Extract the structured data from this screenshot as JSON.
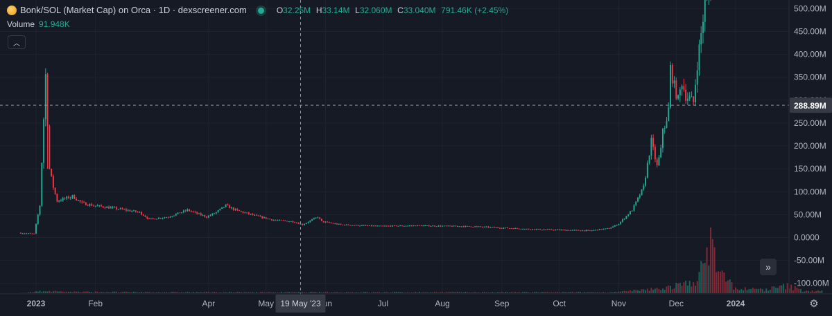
{
  "legend": {
    "title": "Bonk/SOL (Market Cap) on Orca · 1D · dexscreener.com",
    "ohlc": [
      {
        "k": "O",
        "v": "32.25M"
      },
      {
        "k": "H",
        "v": "33.14M"
      },
      {
        "k": "L",
        "v": "32.060M"
      },
      {
        "k": "C",
        "v": "33.040M"
      },
      {
        "k": "",
        "v": "791.46K (+2.45%)"
      }
    ],
    "volume_label": "Volume",
    "volume_value": "91.948K"
  },
  "icons": {
    "collapse": "chevron-up-icon",
    "scroll": "double-chevron-right-icon",
    "settings": "gear-icon"
  },
  "colors": {
    "background": "#161a25",
    "up": "#22ab94",
    "down": "#f23645",
    "grid": "#1f2330",
    "crosshair": "#9598a1"
  },
  "chart_data": {
    "type": "candlestick",
    "x_unit": "day",
    "y_unit": "market cap (USD)",
    "ylim": [
      -110,
      525
    ],
    "y_ticks": [
      "500.00M",
      "450.00M",
      "400.00M",
      "350.00M",
      "300.00M",
      "250.00M",
      "200.00M",
      "150.00M",
      "100.00M",
      "50.00M",
      "0.0000",
      "-50.00M",
      "-100.00M"
    ],
    "y_tick_values": [
      500,
      450,
      400,
      350,
      300,
      250,
      200,
      150,
      100,
      50,
      0,
      -50,
      -100
    ],
    "x_labels": [
      "2023",
      "Feb",
      "Apr",
      "May",
      "Jun",
      "Jul",
      "Aug",
      "Sep",
      "Oct",
      "Nov",
      "Dec",
      "2024"
    ],
    "x_label_days": [
      0,
      31,
      90,
      120,
      151,
      181,
      212,
      243,
      273,
      304,
      334,
      365
    ],
    "x_range_days": [
      -8,
      412
    ],
    "crosshair": {
      "x_label": "19 May '23",
      "x_day": 138,
      "y_label": "288.89M",
      "y_value": 288.89
    },
    "price_anchors": [
      [
        -8,
        10
      ],
      [
        0,
        8
      ],
      [
        3,
        70
      ],
      [
        5,
        260
      ],
      [
        6,
        355
      ],
      [
        8,
        150
      ],
      [
        10,
        110
      ],
      [
        12,
        80
      ],
      [
        20,
        90
      ],
      [
        25,
        75
      ],
      [
        31,
        70
      ],
      [
        45,
        62
      ],
      [
        55,
        55
      ],
      [
        60,
        40
      ],
      [
        70,
        45
      ],
      [
        80,
        60
      ],
      [
        90,
        45
      ],
      [
        95,
        55
      ],
      [
        100,
        70
      ],
      [
        105,
        60
      ],
      [
        115,
        48
      ],
      [
        125,
        38
      ],
      [
        135,
        35
      ],
      [
        140,
        28
      ],
      [
        148,
        45
      ],
      [
        150,
        35
      ],
      [
        160,
        28
      ],
      [
        180,
        25
      ],
      [
        200,
        26
      ],
      [
        230,
        24
      ],
      [
        260,
        18
      ],
      [
        290,
        15
      ],
      [
        300,
        20
      ],
      [
        305,
        30
      ],
      [
        312,
        60
      ],
      [
        318,
        110
      ],
      [
        322,
        210
      ],
      [
        325,
        155
      ],
      [
        327,
        190
      ],
      [
        328,
        240
      ],
      [
        330,
        250
      ],
      [
        331,
        280
      ],
      [
        332,
        370
      ],
      [
        334,
        330
      ],
      [
        336,
        300
      ],
      [
        338,
        340
      ],
      [
        340,
        310
      ],
      [
        344,
        295
      ],
      [
        346,
        380
      ],
      [
        350,
        510
      ],
      [
        352,
        540
      ]
    ],
    "volume_anchors": [
      [
        -8,
        0.2
      ],
      [
        3,
        2
      ],
      [
        6,
        3
      ],
      [
        10,
        2
      ],
      [
        20,
        1.5
      ],
      [
        60,
        1
      ],
      [
        150,
        1
      ],
      [
        300,
        1
      ],
      [
        315,
        3
      ],
      [
        325,
        5
      ],
      [
        330,
        7
      ],
      [
        340,
        10
      ],
      [
        345,
        18
      ],
      [
        350,
        35
      ],
      [
        352,
        80
      ],
      [
        354,
        40
      ],
      [
        358,
        20
      ],
      [
        365,
        5
      ],
      [
        380,
        4
      ],
      [
        392,
        8
      ],
      [
        400,
        3
      ],
      [
        412,
        2
      ]
    ]
  }
}
